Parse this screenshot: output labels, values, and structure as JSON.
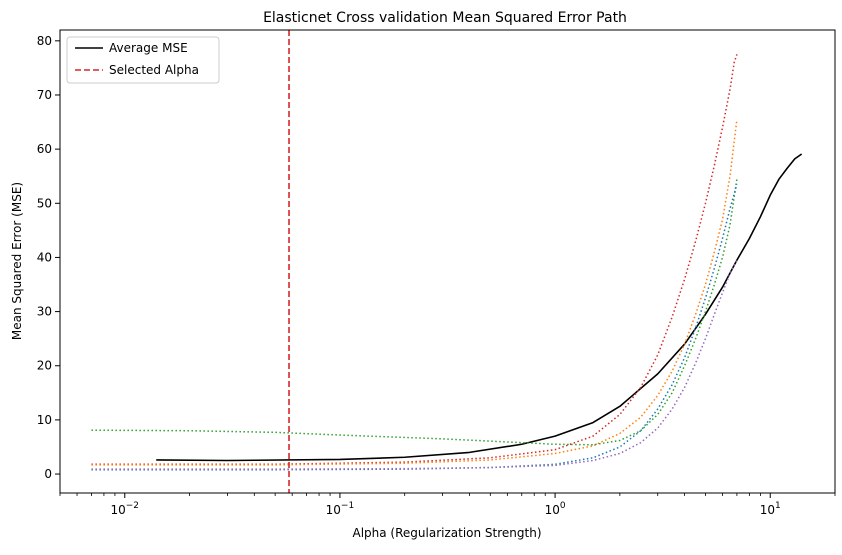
{
  "chart_data": {
    "type": "line",
    "title": "Elasticnet Cross validation Mean Squared Error Path",
    "xlabel": "Alpha (Regularization Strength)",
    "ylabel": "Mean Squared Error (MSE)",
    "xscale": "log",
    "xlim": [
      0.005,
      20
    ],
    "ylim": [
      -3.5,
      82
    ],
    "x_ticks": [
      0.01,
      0.1,
      1,
      10
    ],
    "x_tick_labels": [
      {
        "base": "10",
        "exp": "−2"
      },
      {
        "base": "10",
        "exp": "−1"
      },
      {
        "base": "10",
        "exp": "0"
      },
      {
        "base": "10",
        "exp": "1"
      }
    ],
    "y_ticks": [
      0,
      10,
      20,
      30,
      40,
      50,
      60,
      70,
      80
    ],
    "y_tick_labels": [
      "0",
      "10",
      "20",
      "30",
      "40",
      "50",
      "60",
      "70",
      "80"
    ],
    "legend": {
      "placement": "top-left",
      "entries": [
        {
          "label": "Average MSE",
          "color": "#000000",
          "style": "solid"
        },
        {
          "label": "Selected Alpha",
          "color": "#d62728",
          "style": "dashed"
        }
      ]
    },
    "selected_alpha": 0.058,
    "series": [
      {
        "color": "#000000",
        "style": "solid",
        "width": 1.6,
        "points": [
          [
            0.014,
            2.6
          ],
          [
            0.03,
            2.5
          ],
          [
            0.1,
            2.7
          ],
          [
            0.2,
            3.1
          ],
          [
            0.4,
            4.0
          ],
          [
            0.7,
            5.5
          ],
          [
            1.0,
            7.0
          ],
          [
            1.5,
            9.5
          ],
          [
            2.0,
            12.5
          ],
          [
            3.0,
            18.5
          ],
          [
            4.0,
            24.0
          ],
          [
            5.0,
            29.5
          ],
          [
            6.0,
            34.5
          ],
          [
            7.0,
            39.5
          ],
          [
            8.0,
            43.5
          ],
          [
            9.0,
            47.5
          ],
          [
            10.0,
            51.5
          ],
          [
            11.0,
            54.5
          ],
          [
            12.0,
            56.5
          ],
          [
            13.0,
            58.2
          ],
          [
            14.0,
            59.1
          ]
        ]
      },
      {
        "color": "#d62728",
        "style": "dotted",
        "width": 1.5,
        "points": [
          [
            0.007,
            1.8
          ],
          [
            0.05,
            1.8
          ],
          [
            0.2,
            2.2
          ],
          [
            0.5,
            3.0
          ],
          [
            1.0,
            4.5
          ],
          [
            1.5,
            7.0
          ],
          [
            2.0,
            11.0
          ],
          [
            2.5,
            16.0
          ],
          [
            3.0,
            22.0
          ],
          [
            3.5,
            29.0
          ],
          [
            4.0,
            36.0
          ],
          [
            4.5,
            43.0
          ],
          [
            5.0,
            50.0
          ],
          [
            5.5,
            57.0
          ],
          [
            6.0,
            64.0
          ],
          [
            6.5,
            71.0
          ],
          [
            6.8,
            76.0
          ],
          [
            7.0,
            77.5
          ]
        ]
      },
      {
        "color": "#ff7f0e",
        "style": "dotted",
        "width": 1.5,
        "points": [
          [
            0.007,
            1.7
          ],
          [
            0.05,
            1.7
          ],
          [
            0.2,
            2.0
          ],
          [
            0.5,
            2.6
          ],
          [
            1.0,
            3.8
          ],
          [
            1.5,
            5.2
          ],
          [
            2.0,
            7.5
          ],
          [
            2.5,
            10.5
          ],
          [
            3.0,
            14.5
          ],
          [
            3.5,
            19.0
          ],
          [
            4.0,
            24.0
          ],
          [
            4.5,
            29.5
          ],
          [
            5.0,
            35.0
          ],
          [
            5.5,
            41.0
          ],
          [
            6.0,
            47.0
          ],
          [
            6.5,
            55.0
          ],
          [
            7.0,
            65.5
          ]
        ]
      },
      {
        "color": "#2ca02c",
        "style": "dotted",
        "width": 1.5,
        "points": [
          [
            0.007,
            8.1
          ],
          [
            0.02,
            8.0
          ],
          [
            0.05,
            7.7
          ],
          [
            0.1,
            7.2
          ],
          [
            0.3,
            6.5
          ],
          [
            0.7,
            5.8
          ],
          [
            1.0,
            5.5
          ],
          [
            1.5,
            5.4
          ],
          [
            2.0,
            6.2
          ],
          [
            2.5,
            8.0
          ],
          [
            3.0,
            11.0
          ],
          [
            3.5,
            15.0
          ],
          [
            4.0,
            20.0
          ],
          [
            4.5,
            25.0
          ],
          [
            5.0,
            30.0
          ],
          [
            5.5,
            35.0
          ],
          [
            6.0,
            40.0
          ],
          [
            6.5,
            46.0
          ],
          [
            7.0,
            54.5
          ]
        ]
      },
      {
        "color": "#1f77b4",
        "style": "dotted",
        "width": 1.5,
        "points": [
          [
            0.007,
            0.8
          ],
          [
            0.05,
            0.8
          ],
          [
            0.2,
            0.9
          ],
          [
            0.5,
            1.2
          ],
          [
            1.0,
            1.8
          ],
          [
            1.5,
            3.0
          ],
          [
            2.0,
            5.0
          ],
          [
            2.5,
            8.0
          ],
          [
            3.0,
            12.0
          ],
          [
            3.5,
            16.5
          ],
          [
            4.0,
            21.5
          ],
          [
            4.5,
            27.0
          ],
          [
            5.0,
            32.5
          ],
          [
            5.5,
            38.0
          ],
          [
            6.0,
            43.5
          ],
          [
            6.5,
            49.0
          ],
          [
            7.0,
            53.5
          ]
        ]
      },
      {
        "color": "#9467bd",
        "style": "dotted",
        "width": 1.5,
        "points": [
          [
            0.007,
            0.9
          ],
          [
            0.05,
            0.9
          ],
          [
            0.2,
            1.0
          ],
          [
            0.5,
            1.2
          ],
          [
            1.0,
            1.6
          ],
          [
            1.5,
            2.5
          ],
          [
            2.0,
            3.8
          ],
          [
            2.5,
            5.8
          ],
          [
            3.0,
            8.5
          ],
          [
            3.5,
            12.0
          ],
          [
            4.0,
            16.0
          ],
          [
            4.5,
            20.5
          ],
          [
            5.0,
            25.0
          ],
          [
            5.5,
            29.5
          ],
          [
            6.0,
            33.5
          ],
          [
            6.5,
            37.0
          ],
          [
            7.0,
            39.5
          ]
        ]
      }
    ]
  }
}
